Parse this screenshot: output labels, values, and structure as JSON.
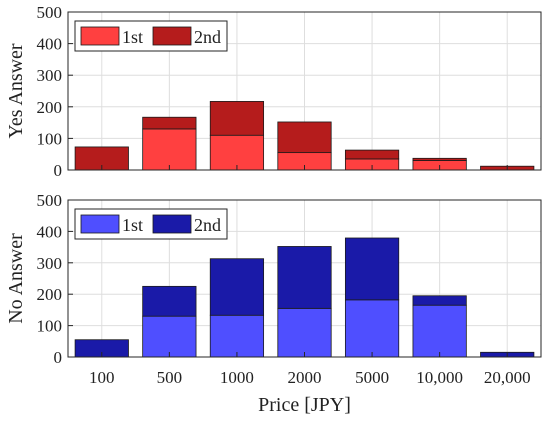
{
  "chart_data": [
    {
      "type": "bar",
      "stacked": true,
      "categories": [
        "100",
        "500",
        "1000",
        "2000",
        "5000",
        "10,000",
        "20,000"
      ],
      "series": [
        {
          "name": "1st",
          "values": [
            0,
            130,
            110,
            55,
            35,
            30,
            0
          ],
          "color": "#ff4040"
        },
        {
          "name": "2nd",
          "values": [
            73,
            37,
            107,
            97,
            28,
            7,
            12
          ],
          "color": "#b51c1c"
        }
      ],
      "ylabel": "Yes Answer",
      "ylim": [
        0,
        500
      ],
      "yticks": [
        "0",
        "100",
        "200",
        "300",
        "400",
        "500"
      ],
      "grid": true,
      "legend_position": "top-left"
    },
    {
      "type": "bar",
      "stacked": true,
      "categories": [
        "100",
        "500",
        "1000",
        "2000",
        "5000",
        "10,000",
        "20,000"
      ],
      "series": [
        {
          "name": "1st",
          "values": [
            0,
            130,
            133,
            155,
            182,
            165,
            0
          ],
          "color": "#4f4fff"
        },
        {
          "name": "2nd",
          "values": [
            55,
            95,
            180,
            197,
            197,
            30,
            15
          ],
          "color": "#1a1aa8"
        }
      ],
      "ylabel": "No Answer",
      "xlabel": "Price [JPY]",
      "ylim": [
        0,
        500
      ],
      "yticks": [
        "0",
        "100",
        "200",
        "300",
        "400",
        "500"
      ],
      "grid": true,
      "legend_position": "top-left"
    }
  ]
}
